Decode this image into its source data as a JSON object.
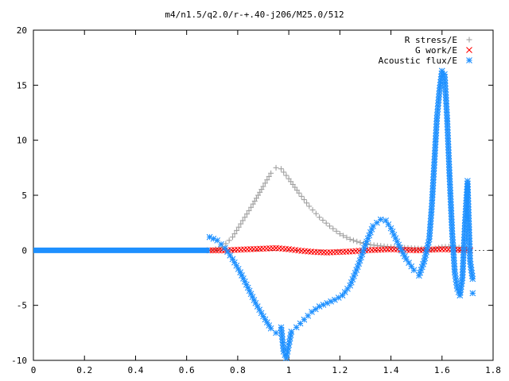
{
  "chart_data": {
    "type": "scatter",
    "title": "m4/n1.5/q2.0/r-+.40-j206/M25.0/512",
    "xlabel": "",
    "ylabel": "",
    "xlim": [
      0,
      1.8
    ],
    "ylim": [
      -10,
      20
    ],
    "x_ticks": [
      "0",
      "0.2",
      "0.4",
      "0.6",
      "0.8",
      "1",
      "1.2",
      "1.4",
      "1.6",
      "1.8"
    ],
    "y_ticks": [
      "-10",
      "-5",
      "0",
      "5",
      "10",
      "15",
      "20"
    ],
    "grid": false,
    "legend_position": "top-right",
    "series": [
      {
        "name": "R stress/E",
        "marker": "plus",
        "color": "#a0a0a0",
        "points": [
          [
            0.7,
            0.0
          ],
          [
            0.74,
            0.3
          ],
          [
            0.78,
            1.2
          ],
          [
            0.82,
            2.7
          ],
          [
            0.86,
            4.2
          ],
          [
            0.9,
            5.8
          ],
          [
            0.93,
            7.0
          ],
          [
            0.95,
            7.5
          ],
          [
            0.97,
            7.4
          ],
          [
            1.0,
            6.5
          ],
          [
            1.04,
            5.2
          ],
          [
            1.08,
            4.0
          ],
          [
            1.12,
            3.0
          ],
          [
            1.16,
            2.2
          ],
          [
            1.2,
            1.5
          ],
          [
            1.24,
            1.0
          ],
          [
            1.28,
            0.7
          ],
          [
            1.32,
            0.5
          ],
          [
            1.36,
            0.4
          ],
          [
            1.4,
            0.3
          ],
          [
            1.44,
            0.25
          ],
          [
            1.48,
            0.2
          ],
          [
            1.52,
            0.15
          ],
          [
            1.56,
            0.1
          ],
          [
            1.6,
            0.3
          ],
          [
            1.64,
            0.35
          ],
          [
            1.68,
            0.2
          ],
          [
            1.71,
            0.1
          ]
        ]
      },
      {
        "name": "G work/E",
        "marker": "cross",
        "color": "#ff0000",
        "points": [
          [
            0.69,
            0.0
          ],
          [
            0.75,
            0.0
          ],
          [
            0.8,
            0.05
          ],
          [
            0.85,
            0.1
          ],
          [
            0.9,
            0.15
          ],
          [
            0.95,
            0.2
          ],
          [
            1.0,
            0.1
          ],
          [
            1.05,
            -0.05
          ],
          [
            1.1,
            -0.15
          ],
          [
            1.15,
            -0.2
          ],
          [
            1.2,
            -0.15
          ],
          [
            1.25,
            -0.1
          ],
          [
            1.3,
            0.0
          ],
          [
            1.35,
            0.05
          ],
          [
            1.4,
            0.1
          ],
          [
            1.45,
            0.05
          ],
          [
            1.5,
            0.0
          ],
          [
            1.55,
            0.05
          ],
          [
            1.6,
            0.1
          ],
          [
            1.65,
            0.05
          ],
          [
            1.71,
            0.0
          ]
        ]
      },
      {
        "name": "Acoustic flux/E",
        "marker": "star",
        "color": "#1e90ff",
        "flat_segment": {
          "x_start": 0.0,
          "x_end": 0.69,
          "y": 0.0
        },
        "points": [
          [
            0.69,
            1.2
          ],
          [
            0.72,
            0.9
          ],
          [
            0.75,
            0.2
          ],
          [
            0.78,
            -0.8
          ],
          [
            0.81,
            -2.0
          ],
          [
            0.84,
            -3.4
          ],
          [
            0.87,
            -4.8
          ],
          [
            0.9,
            -6.0
          ],
          [
            0.93,
            -7.1
          ],
          [
            0.95,
            -7.5
          ],
          [
            0.97,
            -7.0
          ],
          [
            0.98,
            -9.2
          ],
          [
            0.99,
            -9.8
          ],
          [
            1.0,
            -8.6
          ],
          [
            1.01,
            -7.4
          ],
          [
            1.03,
            -7.0
          ],
          [
            1.06,
            -6.3
          ],
          [
            1.09,
            -5.6
          ],
          [
            1.12,
            -5.1
          ],
          [
            1.15,
            -4.8
          ],
          [
            1.18,
            -4.5
          ],
          [
            1.21,
            -4.1
          ],
          [
            1.24,
            -3.2
          ],
          [
            1.27,
            -1.5
          ],
          [
            1.3,
            0.5
          ],
          [
            1.33,
            2.2
          ],
          [
            1.36,
            2.8
          ],
          [
            1.38,
            2.7
          ],
          [
            1.4,
            2.0
          ],
          [
            1.43,
            0.5
          ],
          [
            1.46,
            -0.8
          ],
          [
            1.49,
            -1.8
          ],
          [
            1.51,
            -2.3
          ],
          [
            1.53,
            -1.0
          ],
          [
            1.55,
            1.0
          ],
          [
            1.56,
            4.0
          ],
          [
            1.57,
            8.0
          ],
          [
            1.58,
            12.0
          ],
          [
            1.59,
            14.5
          ],
          [
            1.6,
            16.3
          ],
          [
            1.61,
            16.0
          ],
          [
            1.62,
            12.0
          ],
          [
            1.63,
            6.5
          ],
          [
            1.64,
            1.5
          ],
          [
            1.65,
            -2.0
          ],
          [
            1.66,
            -3.5
          ],
          [
            1.67,
            -4.1
          ],
          [
            1.68,
            -2.5
          ],
          [
            1.69,
            2.5
          ],
          [
            1.7,
            6.3
          ],
          [
            1.71,
            -1.0
          ],
          [
            1.72,
            -2.6
          ],
          [
            1.72,
            -3.9
          ]
        ]
      }
    ]
  }
}
